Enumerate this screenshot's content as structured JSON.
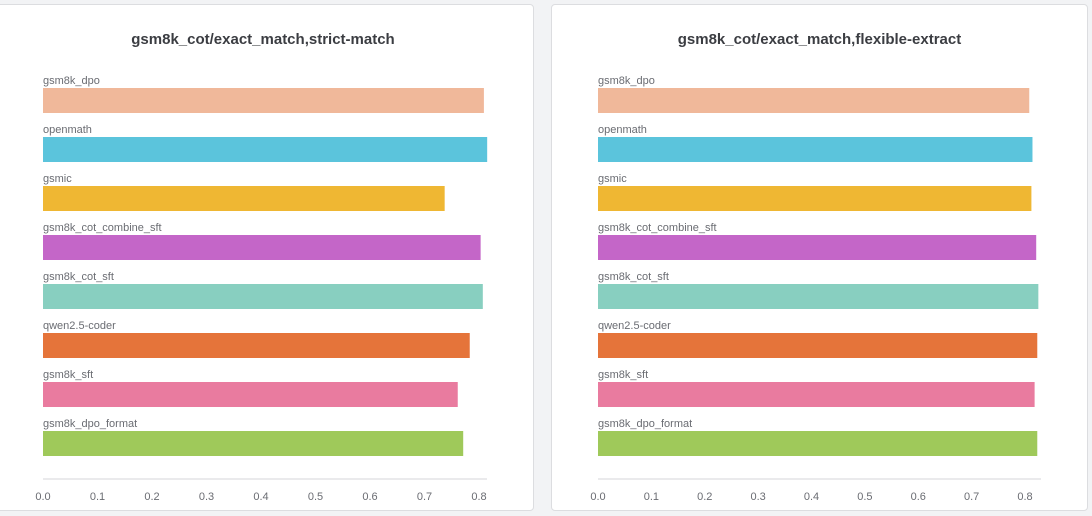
{
  "chart_data": [
    {
      "type": "bar",
      "orientation": "horizontal",
      "title": "gsm8k_cot/exact_match,strict-match",
      "categories": [
        "gsm8k_dpo",
        "openmath",
        "gsmic",
        "gsm8k_cot_combine_sft",
        "gsm8k_cot_sft",
        "qwen2.5-coder",
        "gsm8k_sft",
        "gsm8k_dpo_format"
      ],
      "values": [
        0.809,
        0.815,
        0.737,
        0.803,
        0.807,
        0.783,
        0.761,
        0.771
      ],
      "colors": [
        "#f0b89a",
        "#5bc4dc",
        "#efb733",
        "#c466c8",
        "#88cfc0",
        "#e5743a",
        "#e97b9f",
        "#9fc95a"
      ],
      "xticks": [
        "0.0",
        "0.1",
        "0.2",
        "0.3",
        "0.4",
        "0.5",
        "0.6",
        "0.7",
        "0.8"
      ],
      "xlim": [
        0,
        0.8
      ],
      "grid": false
    },
    {
      "type": "bar",
      "orientation": "horizontal",
      "title": "gsm8k_cot/exact_match,flexible-extract",
      "categories": [
        "gsm8k_dpo",
        "openmath",
        "gsmic",
        "gsm8k_cot_combine_sft",
        "gsm8k_cot_sft",
        "qwen2.5-coder",
        "gsm8k_sft",
        "gsm8k_dpo_format"
      ],
      "values": [
        0.808,
        0.814,
        0.812,
        0.821,
        0.825,
        0.823,
        0.818,
        0.823
      ],
      "colors": [
        "#f0b89a",
        "#5bc4dc",
        "#efb733",
        "#c466c8",
        "#88cfc0",
        "#e5743a",
        "#e97b9f",
        "#9fc95a"
      ],
      "xticks": [
        "0.0",
        "0.1",
        "0.2",
        "0.3",
        "0.4",
        "0.5",
        "0.6",
        "0.7",
        "0.8"
      ],
      "xlim": [
        0,
        0.8
      ],
      "grid": false
    }
  ]
}
